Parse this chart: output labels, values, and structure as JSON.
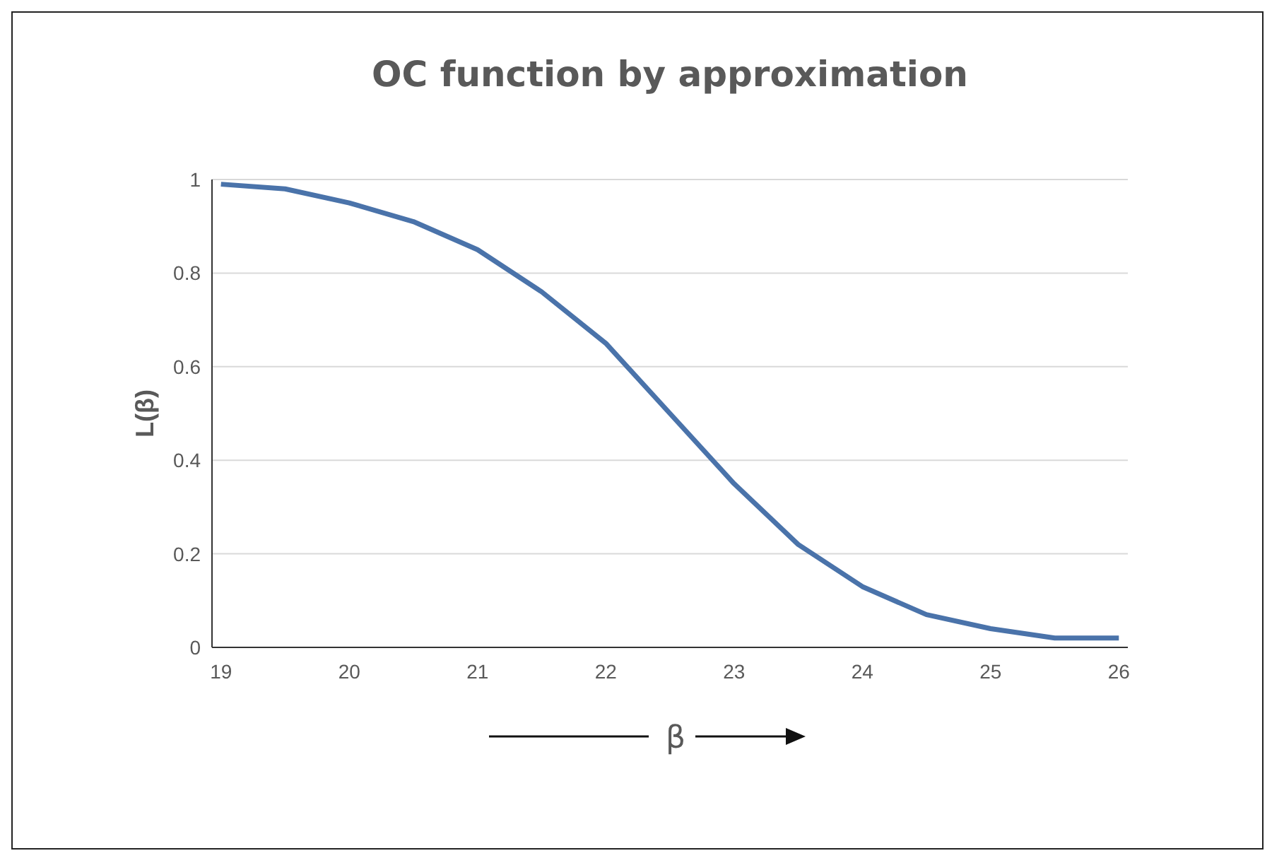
{
  "chart_data": {
    "type": "line",
    "title": "OC function by approximation",
    "xlabel": "β",
    "ylabel": "L(β)",
    "x": [
      19,
      19.5,
      20,
      20.5,
      21,
      21.5,
      22,
      22.5,
      23,
      23.5,
      24,
      24.5,
      25,
      25.5,
      26
    ],
    "series": [
      {
        "color": "#4a73aa",
        "values": [
          0.99,
          0.98,
          0.95,
          0.91,
          0.85,
          0.76,
          0.65,
          0.5,
          0.35,
          0.22,
          0.13,
          0.07,
          0.04,
          0.02,
          0.02
        ]
      }
    ],
    "xlim": [
      18.93,
      26.07
    ],
    "xticks": [
      19,
      20,
      21,
      22,
      23,
      24,
      25,
      26
    ],
    "ylim": [
      0,
      1
    ],
    "yticks": [
      0,
      0.2,
      0.4,
      0.6,
      0.8,
      1
    ],
    "grid": "y",
    "marker": "none",
    "line_style": "solid"
  }
}
